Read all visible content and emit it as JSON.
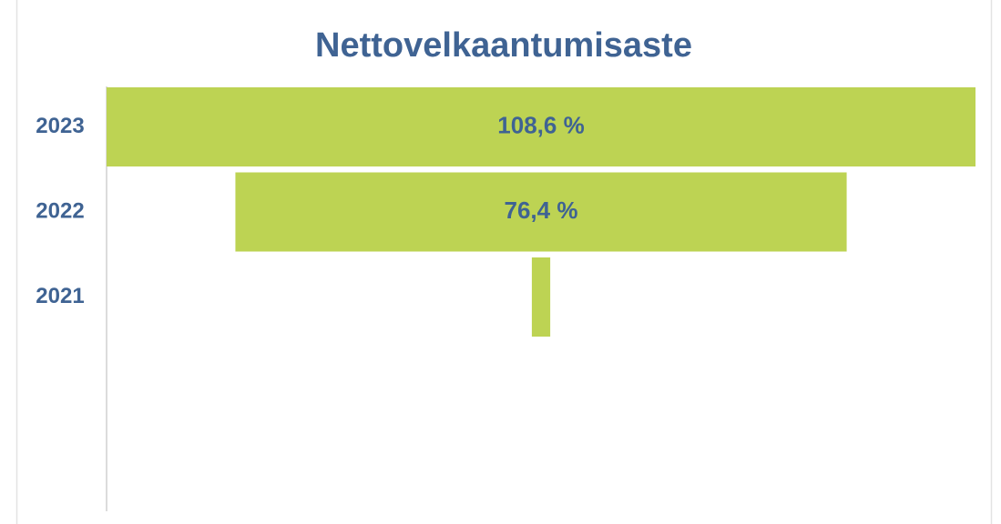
{
  "chart_data": {
    "type": "funnel",
    "title": "Nettovelkaantumisaste",
    "categories": [
      "2023",
      "2022",
      "2021"
    ],
    "values": [
      108.6,
      76.4,
      2.3
    ],
    "value_labels": [
      "108,6 %",
      "76,4 %",
      null
    ],
    "color": "#bdd353"
  }
}
